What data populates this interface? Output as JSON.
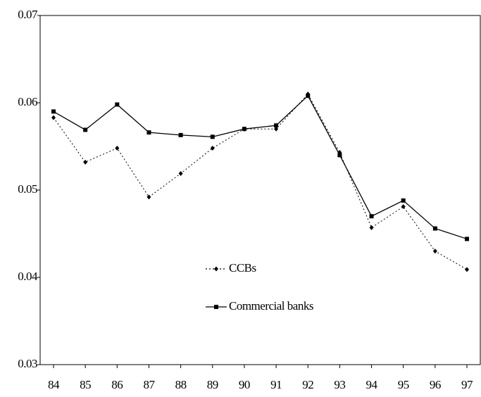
{
  "chart_data": {
    "type": "line",
    "categories": [
      "84",
      "85",
      "86",
      "87",
      "88",
      "89",
      "90",
      "91",
      "92",
      "93",
      "94",
      "95",
      "96",
      "97"
    ],
    "ylim": [
      0.03,
      0.07
    ],
    "yticks": [
      0.03,
      0.04,
      0.05,
      0.06,
      0.07
    ],
    "legend": "center",
    "series": [
      {
        "name": "CCBs",
        "color": "#000000",
        "line_style": "dotted",
        "marker": "diamond",
        "values": [
          0.0583,
          0.0532,
          0.0548,
          0.0492,
          0.0519,
          0.0548,
          0.057,
          0.057,
          0.061,
          0.0543,
          0.0457,
          0.0481,
          0.043,
          0.0409
        ]
      },
      {
        "name": "Commercial banks",
        "color": "#000000",
        "line_style": "solid",
        "marker": "square",
        "values": [
          0.059,
          0.0569,
          0.0598,
          0.0566,
          0.0563,
          0.0561,
          0.057,
          0.0574,
          0.0608,
          0.054,
          0.047,
          0.0488,
          0.0456,
          0.0444
        ]
      }
    ]
  }
}
